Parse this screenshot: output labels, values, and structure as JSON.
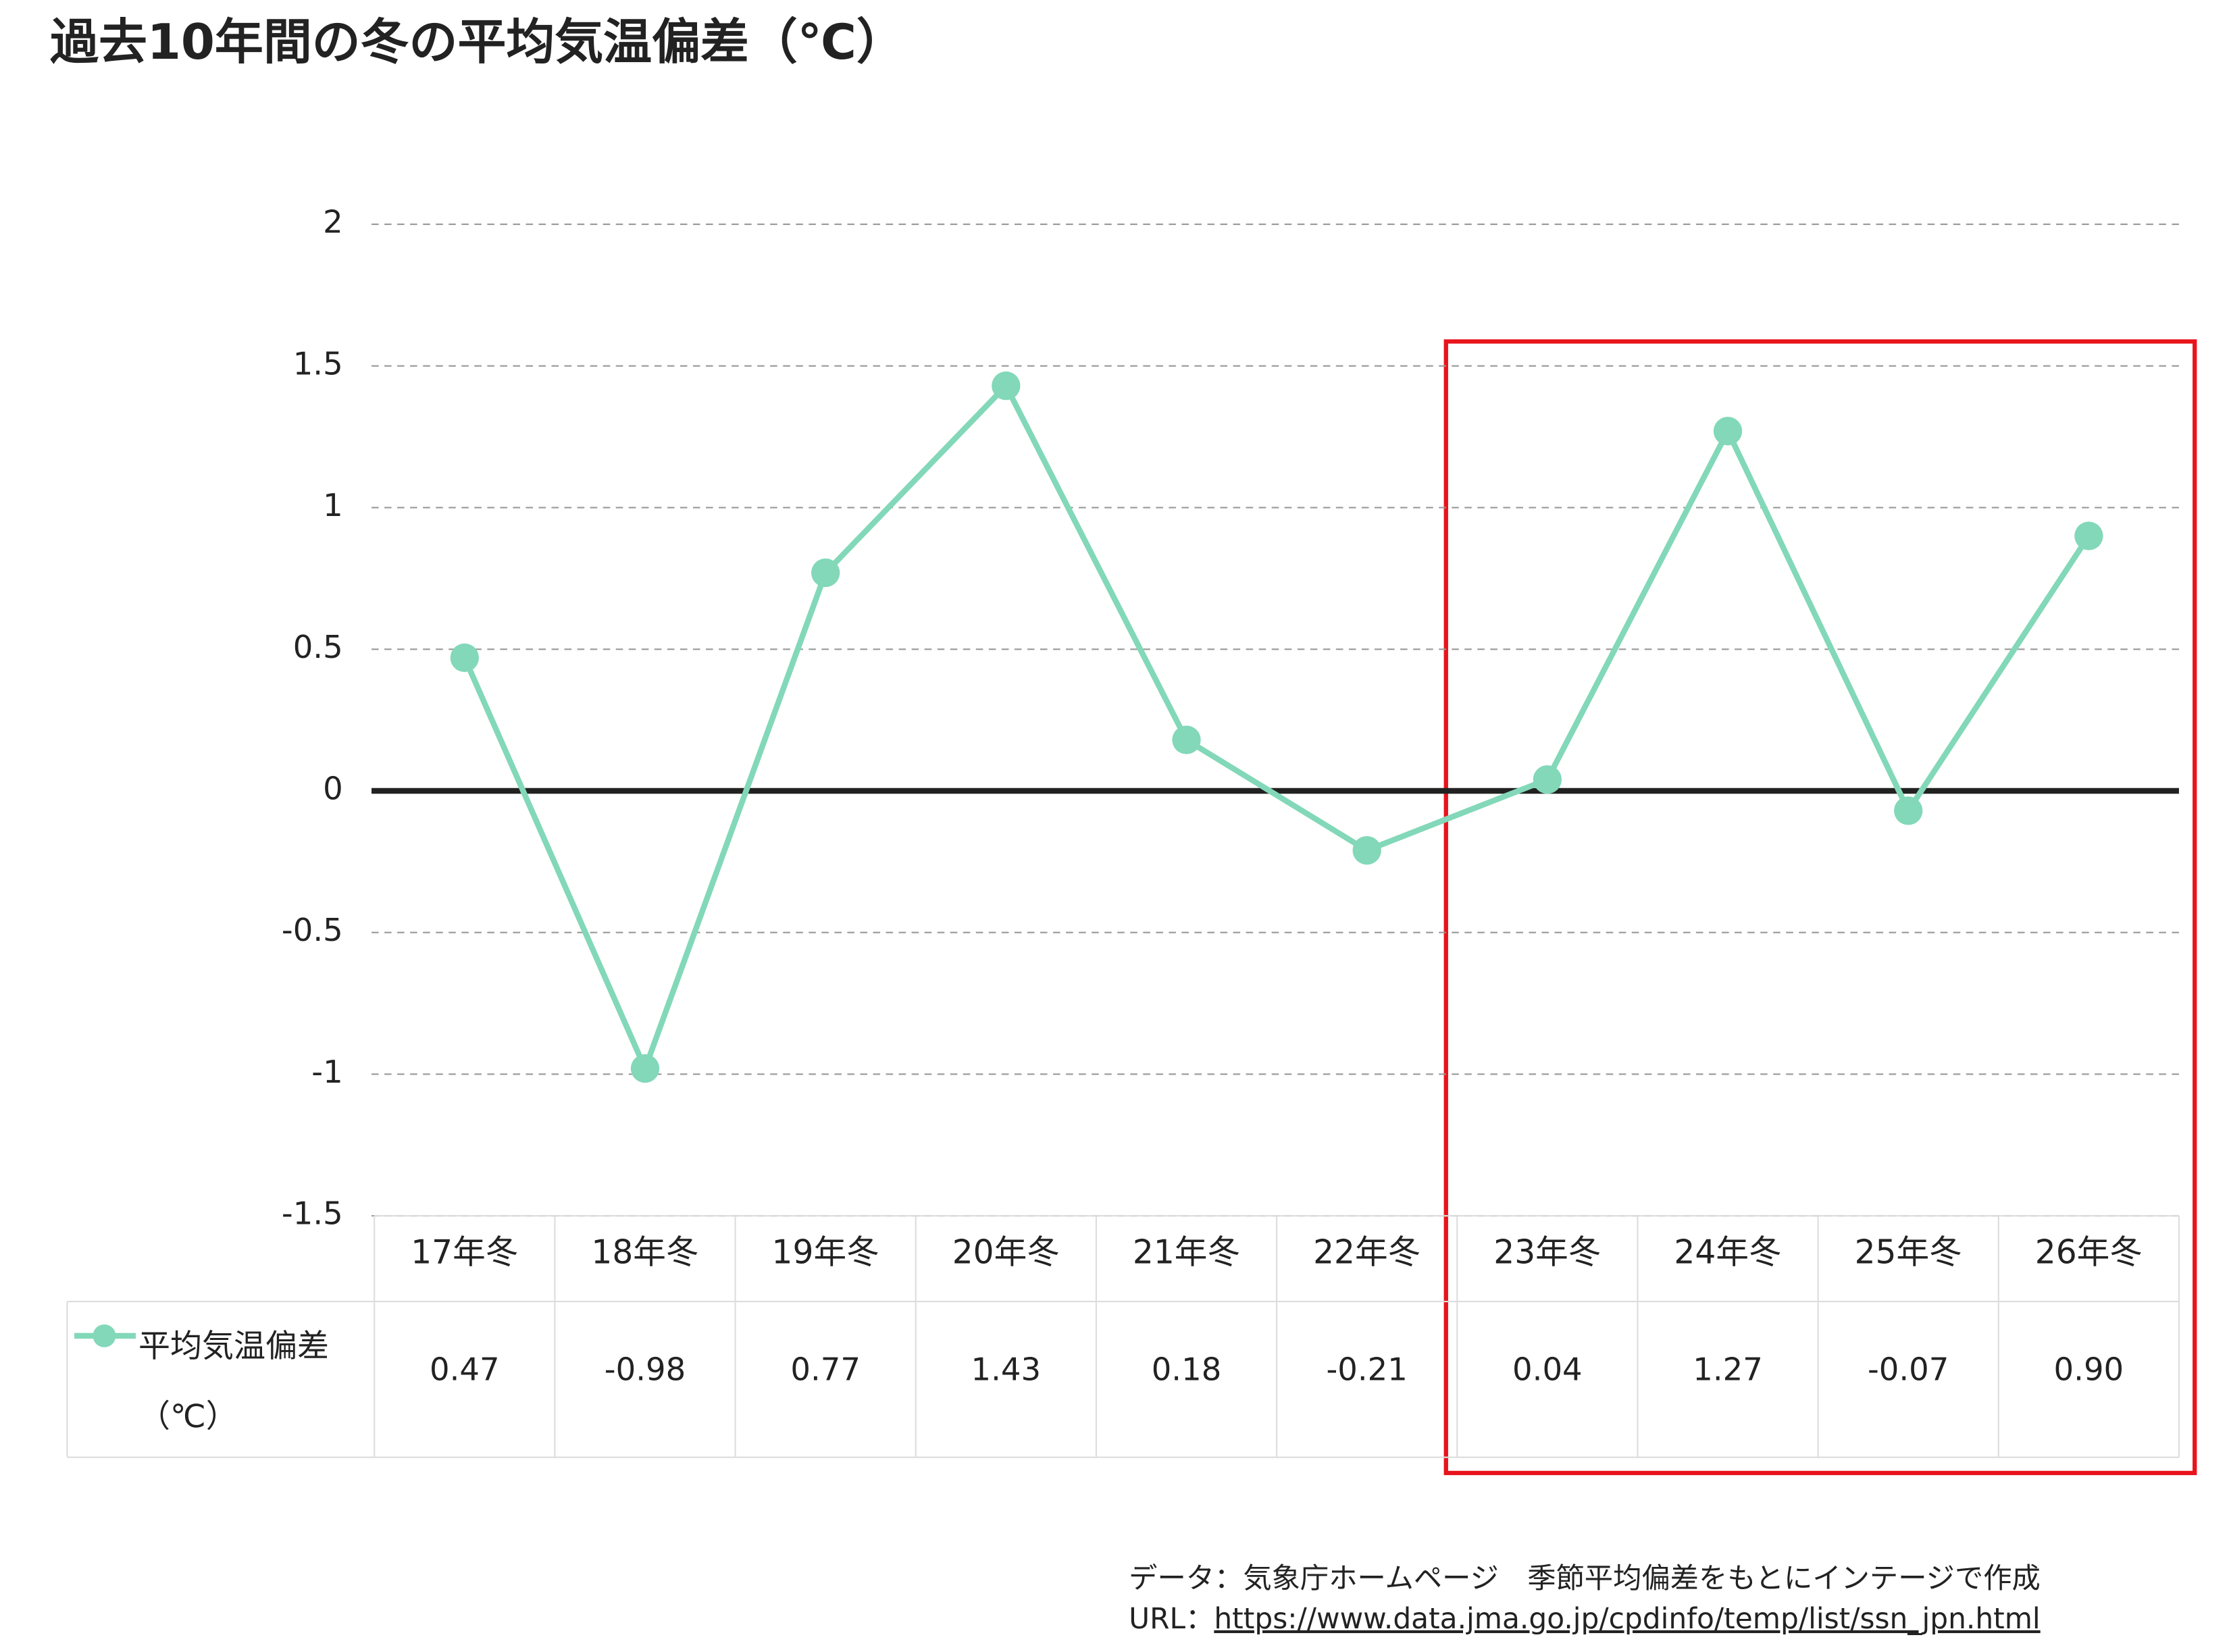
{
  "chart_data": {
    "type": "line",
    "title": "過去10年間の冬の平均気温偏差（℃）",
    "categories": [
      "17年冬",
      "18年冬",
      "19年冬",
      "20年冬",
      "21年冬",
      "22年冬",
      "23年冬",
      "24年冬",
      "25年冬",
      "26年冬"
    ],
    "series": [
      {
        "name": "平均気温偏差（℃）",
        "color": "#82d8b9",
        "values": [
          0.47,
          -0.98,
          0.77,
          1.43,
          0.18,
          -0.21,
          0.04,
          1.27,
          -0.07,
          0.9
        ],
        "value_labels": [
          "0.47",
          "-0.98",
          "0.77",
          "1.43",
          "0.18",
          "-0.21",
          "0.04",
          "1.27",
          "-0.07",
          "0.90"
        ]
      }
    ],
    "ylim": [
      -1.5,
      2
    ],
    "yticks": [
      -1.5,
      -1,
      -0.5,
      0,
      0.5,
      1,
      1.5,
      2
    ],
    "grid": true,
    "source": {
      "line1": "データ：気象庁ホームページ　季節平均偏差をもとにインテージで作成",
      "url_prefix": "URL：",
      "url": "https://www.data.jma.go.jp/cpdinfo/temp/list/ssn_jpn.html"
    }
  }
}
